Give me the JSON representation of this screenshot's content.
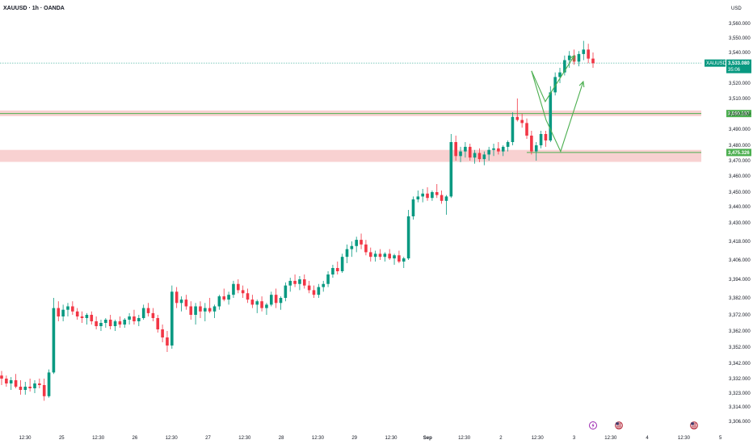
{
  "header": {
    "symbol_title": "XAUUSD · 1h · OANDA"
  },
  "axis": {
    "currency_label": "USD"
  },
  "colors": {
    "up": "#089981",
    "down": "#f23645",
    "arrow": "#4caf50",
    "zone": "#f7c9c9",
    "level_line": "#4caf50",
    "price_line": "#089981",
    "tag_green": "#4caf50",
    "price_tag": "#089981",
    "event_purple": "#9c27b0"
  },
  "chart_data": {
    "type": "candlestick",
    "symbol": "XAUUSD",
    "timeframe": "1h",
    "source": "OANDA",
    "price_axis": {
      "ticks": [
        {
          "label": "3,560.000",
          "value": 3560
        },
        {
          "label": "3,550.000",
          "value": 3550
        },
        {
          "label": "3,540.000",
          "value": 3540
        },
        {
          "label": "3,530.000",
          "value": 3530
        },
        {
          "label": "3,520.000",
          "value": 3520
        },
        {
          "label": "3,510.000",
          "value": 3510
        },
        {
          "label": "3,500.000",
          "value": 3500
        },
        {
          "label": "3,490.000",
          "value": 3490
        },
        {
          "label": "3,480.000",
          "value": 3480
        },
        {
          "label": "3,470.000",
          "value": 3470
        },
        {
          "label": "3,460.000",
          "value": 3460
        },
        {
          "label": "3,450.000",
          "value": 3450
        },
        {
          "label": "3,440.000",
          "value": 3440
        },
        {
          "label": "3,430.000",
          "value": 3430
        },
        {
          "label": "3,418.000",
          "value": 3418
        },
        {
          "label": "3,406.000",
          "value": 3406
        },
        {
          "label": "3,394.000",
          "value": 3394
        },
        {
          "label": "3,382.000",
          "value": 3382
        },
        {
          "label": "3,372.000",
          "value": 3372
        },
        {
          "label": "3,362.000",
          "value": 3362
        },
        {
          "label": "3,352.000",
          "value": 3352
        },
        {
          "label": "3,342.000",
          "value": 3342
        },
        {
          "label": "3,332.000",
          "value": 3332
        },
        {
          "label": "3,323.000",
          "value": 3323
        },
        {
          "label": "3,314.000",
          "value": 3314
        },
        {
          "label": "3,306.000",
          "value": 3306
        }
      ]
    },
    "time_axis": {
      "labels": [
        "12:30",
        "25",
        "12:30",
        "26",
        "12:30",
        "27",
        "12:30",
        "28",
        "12:30",
        "29",
        "12:30",
        "Sep",
        "12:30",
        "2",
        "12:30",
        "3",
        "12:30",
        "4",
        "12:30",
        "5"
      ]
    },
    "last_price": {
      "symbol": "XAUUSD",
      "value": "3,533.080",
      "countdown": "35:06"
    },
    "levels": [
      {
        "label": "3,500.187",
        "value": 3500.187
      },
      {
        "label": "3,475.326",
        "value": 3475.326
      }
    ],
    "zones": [
      {
        "low": 3498.5,
        "high": 3502.2
      },
      {
        "low": 3469.2,
        "high": 3477.0
      }
    ],
    "candles": [
      [
        3334,
        3337,
        3328,
        3332
      ],
      [
        3332,
        3334,
        3327,
        3329
      ],
      [
        3329,
        3333,
        3325,
        3331
      ],
      [
        3331,
        3335,
        3326,
        3327
      ],
      [
        3327,
        3331,
        3322,
        3325
      ],
      [
        3325,
        3330,
        3322,
        3327
      ],
      [
        3327,
        3332,
        3324,
        3326
      ],
      [
        3326,
        3331,
        3323,
        3329
      ],
      [
        3329,
        3332,
        3326,
        3328
      ],
      [
        3328,
        3332,
        3318,
        3321
      ],
      [
        3321,
        3338,
        3320,
        3336
      ],
      [
        3336,
        3382,
        3335,
        3376
      ],
      [
        3376,
        3380,
        3368,
        3371
      ],
      [
        3371,
        3378,
        3368,
        3375
      ],
      [
        3375,
        3379,
        3371,
        3377
      ],
      [
        3377,
        3380,
        3372,
        3374
      ],
      [
        3374,
        3376,
        3369,
        3371
      ],
      [
        3371,
        3374,
        3367,
        3370
      ],
      [
        3370,
        3373,
        3366,
        3372
      ],
      [
        3372,
        3374,
        3366,
        3368
      ],
      [
        3368,
        3371,
        3363,
        3365
      ],
      [
        3365,
        3369,
        3362,
        3367
      ],
      [
        3367,
        3370,
        3364,
        3369
      ],
      [
        3369,
        3372,
        3363,
        3365
      ],
      [
        3365,
        3369,
        3362,
        3368
      ],
      [
        3368,
        3371,
        3364,
        3366
      ],
      [
        3366,
        3370,
        3364,
        3369
      ],
      [
        3369,
        3373,
        3366,
        3371
      ],
      [
        3371,
        3375,
        3366,
        3368
      ],
      [
        3368,
        3372,
        3365,
        3370
      ],
      [
        3370,
        3378,
        3369,
        3376
      ],
      [
        3376,
        3379,
        3371,
        3373
      ],
      [
        3373,
        3376,
        3368,
        3370
      ],
      [
        3370,
        3372,
        3361,
        3363
      ],
      [
        3363,
        3366,
        3355,
        3358
      ],
      [
        3358,
        3362,
        3349,
        3353
      ],
      [
        3353,
        3390,
        3351,
        3386
      ],
      [
        3386,
        3389,
        3376,
        3379
      ],
      [
        3379,
        3383,
        3374,
        3381
      ],
      [
        3381,
        3384,
        3375,
        3377
      ],
      [
        3377,
        3380,
        3369,
        3372
      ],
      [
        3372,
        3379,
        3366,
        3377
      ],
      [
        3377,
        3380,
        3370,
        3374
      ],
      [
        3374,
        3379,
        3368,
        3376
      ],
      [
        3376,
        3382,
        3373,
        3374
      ],
      [
        3374,
        3378,
        3370,
        3377
      ],
      [
        3377,
        3384,
        3375,
        3383
      ],
      [
        3383,
        3388,
        3380,
        3381
      ],
      [
        3381,
        3386,
        3378,
        3384
      ],
      [
        3384,
        3393,
        3382,
        3391
      ],
      [
        3391,
        3394,
        3385,
        3387
      ],
      [
        3387,
        3390,
        3382,
        3385
      ],
      [
        3385,
        3388,
        3379,
        3381
      ],
      [
        3381,
        3384,
        3376,
        3378
      ],
      [
        3378,
        3381,
        3373,
        3380
      ],
      [
        3380,
        3383,
        3374,
        3376
      ],
      [
        3376,
        3379,
        3372,
        3378
      ],
      [
        3378,
        3386,
        3377,
        3384
      ],
      [
        3384,
        3388,
        3376,
        3379
      ],
      [
        3379,
        3383,
        3375,
        3382
      ],
      [
        3382,
        3392,
        3380,
        3390
      ],
      [
        3390,
        3395,
        3386,
        3393
      ],
      [
        3393,
        3397,
        3389,
        3391
      ],
      [
        3391,
        3396,
        3387,
        3394
      ],
      [
        3394,
        3397,
        3388,
        3390
      ],
      [
        3390,
        3393,
        3385,
        3387
      ],
      [
        3387,
        3390,
        3382,
        3384
      ],
      [
        3384,
        3391,
        3382,
        3389
      ],
      [
        3389,
        3393,
        3386,
        3391
      ],
      [
        3391,
        3399,
        3389,
        3397
      ],
      [
        3397,
        3403,
        3395,
        3401
      ],
      [
        3401,
        3405,
        3397,
        3399
      ],
      [
        3399,
        3410,
        3398,
        3408
      ],
      [
        3408,
        3416,
        3404,
        3413
      ],
      [
        3413,
        3418,
        3408,
        3415
      ],
      [
        3415,
        3421,
        3411,
        3419
      ],
      [
        3419,
        3423,
        3413,
        3416
      ],
      [
        3416,
        3419,
        3409,
        3411
      ],
      [
        3411,
        3414,
        3405,
        3408
      ],
      [
        3408,
        3412,
        3405,
        3410
      ],
      [
        3410,
        3413,
        3406,
        3408
      ],
      [
        3408,
        3411,
        3405,
        3410
      ],
      [
        3410,
        3413,
        3406,
        3407
      ],
      [
        3407,
        3410,
        3403,
        3409
      ],
      [
        3409,
        3412,
        3404,
        3405
      ],
      [
        3405,
        3408,
        3401,
        3407
      ],
      [
        3407,
        3438,
        3406,
        3434
      ],
      [
        3434,
        3447,
        3432,
        3445
      ],
      [
        3445,
        3451,
        3443,
        3447
      ],
      [
        3447,
        3452,
        3443,
        3449
      ],
      [
        3449,
        3453,
        3444,
        3446
      ],
      [
        3446,
        3451,
        3444,
        3450
      ],
      [
        3450,
        3455,
        3446,
        3448
      ],
      [
        3448,
        3451,
        3442,
        3444
      ],
      [
        3444,
        3448,
        3435,
        3447
      ],
      [
        3447,
        3487,
        3446,
        3482
      ],
      [
        3482,
        3486,
        3470,
        3473
      ],
      [
        3473,
        3479,
        3469,
        3476
      ],
      [
        3476,
        3482,
        3472,
        3479
      ],
      [
        3479,
        3481,
        3470,
        3472
      ],
      [
        3472,
        3477,
        3468,
        3475
      ],
      [
        3475,
        3478,
        3469,
        3471
      ],
      [
        3471,
        3476,
        3467,
        3474
      ],
      [
        3474,
        3479,
        3470,
        3477
      ],
      [
        3477,
        3481,
        3473,
        3478
      ],
      [
        3478,
        3482,
        3474,
        3476
      ],
      [
        3476,
        3480,
        3473,
        3479
      ],
      [
        3479,
        3483,
        3476,
        3482
      ],
      [
        3482,
        3501,
        3480,
        3498
      ],
      [
        3498,
        3510,
        3495,
        3496
      ],
      [
        3496,
        3500,
        3491,
        3494
      ],
      [
        3494,
        3497,
        3484,
        3486
      ],
      [
        3486,
        3489,
        3474,
        3476
      ],
      [
        3476,
        3482,
        3470,
        3480
      ],
      [
        3480,
        3489,
        3478,
        3487
      ],
      [
        3487,
        3489,
        3479,
        3483
      ],
      [
        3483,
        3518,
        3482,
        3514
      ],
      [
        3514,
        3527,
        3512,
        3524
      ],
      [
        3524,
        3530,
        3520,
        3527
      ],
      [
        3527,
        3538,
        3525,
        3535
      ],
      [
        3535,
        3541,
        3530,
        3538
      ],
      [
        3538,
        3542,
        3532,
        3534
      ],
      [
        3534,
        3541,
        3531,
        3539
      ],
      [
        3539,
        3548,
        3535,
        3542
      ],
      [
        3542,
        3546,
        3533,
        3536
      ],
      [
        3536,
        3540,
        3530,
        3533
      ]
    ],
    "drawings": [
      {
        "type": "projected-path",
        "points": [
          [
            3527,
            "a"
          ],
          [
            3512,
            "b"
          ],
          [
            3540,
            "c"
          ]
        ]
      },
      {
        "type": "projected-path",
        "points": [
          [
            3527,
            "a"
          ],
          [
            3500,
            "b"
          ],
          [
            3475,
            "c"
          ],
          [
            3520,
            "d"
          ]
        ]
      }
    ],
    "events": [
      "lightning",
      "us-flag",
      "us-flag"
    ]
  }
}
